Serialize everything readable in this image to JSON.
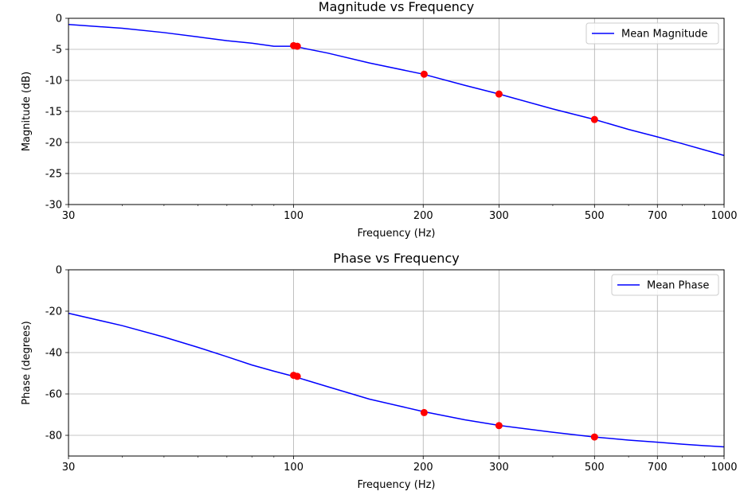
{
  "chart_data": [
    {
      "type": "line",
      "title": "Magnitude vs Frequency",
      "xlabel": "Frequency (Hz)",
      "ylabel": "Magnitude (dB)",
      "xscale": "log",
      "xlim": [
        30,
        1000
      ],
      "ylim": [
        -30,
        0
      ],
      "xticks": [
        30,
        100,
        200,
        300,
        500,
        700,
        1000
      ],
      "yticks": [
        0,
        -5,
        -10,
        -15,
        -20,
        -25,
        -30
      ],
      "grid": true,
      "legend": "top-right",
      "series": [
        {
          "name": "Mean Magnitude",
          "color": "#0000ff",
          "x": [
            30,
            40,
            50,
            60,
            70,
            80,
            90,
            100,
            120,
            150,
            200,
            250,
            300,
            400,
            500,
            600,
            700,
            800,
            900,
            1000
          ],
          "y": [
            -1.0,
            -1.6,
            -2.3,
            -3.0,
            -3.6,
            -4.0,
            -4.5,
            -4.5,
            -5.6,
            -7.2,
            -9.0,
            -10.8,
            -12.2,
            -14.6,
            -16.3,
            -17.9,
            -19.1,
            -20.2,
            -21.2,
            -22.1
          ]
        }
      ],
      "markers": {
        "color": "#ff0000",
        "x": [
          100,
          102,
          201,
          300,
          500
        ],
        "y": [
          -4.4,
          -4.5,
          -9.0,
          -12.2,
          -16.3
        ]
      }
    },
    {
      "type": "line",
      "title": "Phase vs Frequency",
      "xlabel": "Frequency (Hz)",
      "ylabel": "Phase (degrees)",
      "xscale": "log",
      "xlim": [
        30,
        1000
      ],
      "ylim": [
        -90,
        0
      ],
      "xticks": [
        30,
        100,
        200,
        300,
        500,
        700,
        1000
      ],
      "yticks": [
        0,
        -20,
        -40,
        -60,
        -80
      ],
      "grid": true,
      "legend": "top-right",
      "series": [
        {
          "name": "Mean Phase",
          "color": "#0000ff",
          "x": [
            30,
            40,
            50,
            60,
            70,
            80,
            90,
            100,
            120,
            150,
            200,
            250,
            300,
            400,
            500,
            600,
            700,
            800,
            900,
            1000
          ],
          "y": [
            -21.0,
            -27.0,
            -32.5,
            -37.5,
            -42.0,
            -46.0,
            -49.0,
            -51.5,
            -56.5,
            -62.5,
            -68.5,
            -72.5,
            -75.2,
            -78.5,
            -80.8,
            -82.3,
            -83.3,
            -84.3,
            -85.0,
            -85.6
          ]
        }
      ],
      "markers": {
        "color": "#ff0000",
        "x": [
          100,
          102,
          201,
          300,
          500
        ],
        "y": [
          -51.0,
          -51.5,
          -69.0,
          -75.3,
          -80.8
        ]
      }
    }
  ]
}
